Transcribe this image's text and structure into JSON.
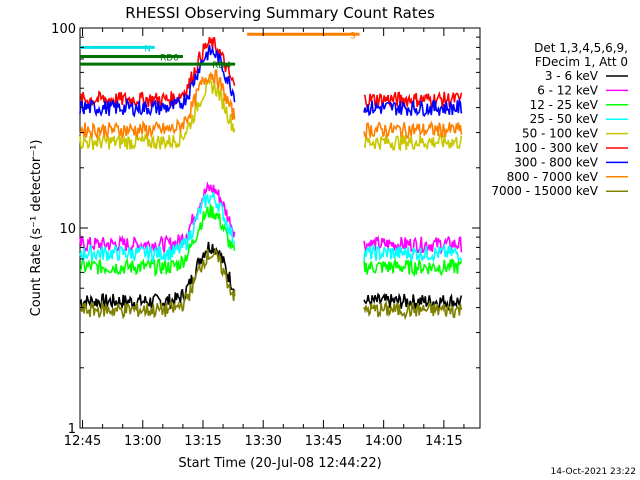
{
  "chart_data": {
    "type": "line",
    "title": "RHESSI Observing Summary Count Rates",
    "xlabel": "Start Time (20-Jul-08 12:44:22)",
    "ylabel": "Count Rate (s⁻¹ detector⁻¹)",
    "yscale": "log",
    "xlim": [
      "12:44:22",
      "14:24:00"
    ],
    "ylim": [
      1,
      100
    ],
    "x_ticks": [
      "12:45",
      "13:00",
      "13:15",
      "13:30",
      "13:45",
      "14:00",
      "14:15"
    ],
    "y_ticks": [
      "1",
      "10",
      "100"
    ],
    "legend_header": [
      "Det 1,3,4,5,6,9,",
      "FDecim 1, Att 0"
    ],
    "legend_position": "right",
    "series": [
      {
        "name": "3 - 6 keV",
        "color": "#000000",
        "level": 4.3
      },
      {
        "name": "6 - 12 keV",
        "color": "#ff00ff",
        "level": 8.3
      },
      {
        "name": "12 - 25 keV",
        "color": "#00ff00",
        "level": 6.4
      },
      {
        "name": "25 - 50 keV",
        "color": "#00ffff",
        "level": 7.5
      },
      {
        "name": "50 - 100 keV",
        "color": "#c8c800",
        "level": 27
      },
      {
        "name": "100 - 300 keV",
        "color": "#ff0000",
        "level": 44
      },
      {
        "name": "300 - 800 keV",
        "color": "#0000ff",
        "level": 40
      },
      {
        "name": "800 - 7000 keV",
        "color": "#ff8000",
        "level": 31
      },
      {
        "name": "7000 - 15000 keV",
        "color": "#808000",
        "level": 3.9
      }
    ],
    "flags": [
      {
        "label": "N",
        "color": "#00e0e0",
        "start": "12:44:22",
        "end": "13:03:00",
        "level": 80
      },
      {
        "label": "RD0",
        "color": "#007000",
        "start": "12:44:22",
        "end": "13:10:00",
        "level": 72
      },
      {
        "label": "RD4",
        "color": "#007000",
        "start": "12:44:22",
        "end": "13:23:00",
        "level": 66
      },
      {
        "label": "S",
        "color": "#ff8000",
        "start": "13:26:00",
        "end": "13:54:00",
        "level": 93
      }
    ],
    "footer_date": "14-Oct-2021 23:22"
  }
}
